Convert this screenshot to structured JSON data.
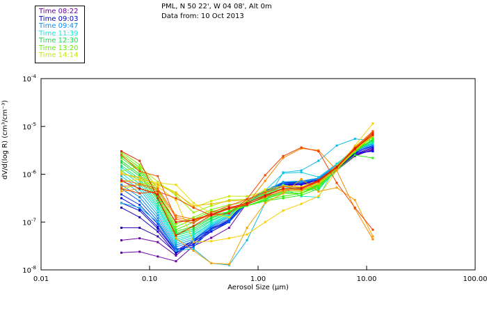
{
  "header": {
    "line1": "PML, N 50 22', W 04 08', Alt 0m",
    "line2": "Data from: 10 Oct 2013"
  },
  "legend": [
    {
      "label": "Time 08:22",
      "color": "#6a00a8"
    },
    {
      "label": "Time 09:03",
      "color": "#0000cc"
    },
    {
      "label": "Time 09:47",
      "color": "#0a8cf0"
    },
    {
      "label": "Time 11:39",
      "color": "#10e8e0"
    },
    {
      "label": "Time 12:30",
      "color": "#10e040"
    },
    {
      "label": "Time 13:20",
      "color": "#60f000"
    },
    {
      "label": "Time 14:14",
      "color": "#c8e800"
    }
  ],
  "chart_data": {
    "type": "line",
    "xlabel": "Aerosol Size (µm)",
    "ylabel": "dV/d(log R) (cm³/cm⁻³)",
    "xscale": "log",
    "yscale": "log",
    "xlim": [
      0.01,
      100
    ],
    "ylim": [
      1e-08,
      0.0001
    ],
    "x_ticks": [
      "0.01",
      "0.10",
      "1.00",
      "10.00",
      "100.00"
    ],
    "y_ticks": [
      {
        "base": "10",
        "exp": "-4"
      },
      {
        "base": "10",
        "exp": "-5"
      },
      {
        "base": "10",
        "exp": "-6"
      },
      {
        "base": "10",
        "exp": "-7"
      },
      {
        "base": "10",
        "exp": "-8"
      }
    ],
    "x": [
      0.055,
      0.081,
      0.119,
      0.175,
      0.254,
      0.37,
      0.54,
      0.79,
      1.16,
      1.7,
      2.5,
      3.6,
      5.3,
      7.8,
      11.4
    ],
    "series_log10": [
      {
        "color": "#6a00a8",
        "values": [
          -7.64,
          -7.62,
          -7.72,
          -7.82,
          -7.5,
          -7.33,
          -7.12,
          -6.6,
          -6.38,
          -6.24,
          -6.22,
          -6.16,
          -5.92,
          -5.62,
          -5.48
        ]
      },
      {
        "color": "#6a00a8",
        "values": [
          -7.38,
          -7.34,
          -7.42,
          -7.7,
          -7.4,
          -7.2,
          -7.0,
          -6.55,
          -6.35,
          -6.2,
          -6.2,
          -6.12,
          -5.9,
          -5.6,
          -5.46
        ]
      },
      {
        "color": "#3000b8",
        "values": [
          -7.12,
          -7.12,
          -7.3,
          -7.64,
          -7.38,
          -7.14,
          -6.96,
          -6.56,
          -6.36,
          -6.22,
          -6.22,
          -6.12,
          -5.88,
          -5.6,
          -5.5
        ]
      },
      {
        "color": "#1000c8",
        "values": [
          -6.7,
          -6.9,
          -7.2,
          -7.66,
          -7.42,
          -7.16,
          -6.98,
          -6.58,
          -6.36,
          -6.2,
          -6.18,
          -6.1,
          -5.86,
          -5.58,
          -5.44
        ]
      },
      {
        "color": "#0000d8",
        "values": [
          -6.6,
          -6.76,
          -7.14,
          -7.62,
          -7.46,
          -7.2,
          -7.0,
          -6.6,
          -6.36,
          -6.22,
          -6.2,
          -6.12,
          -5.88,
          -5.56,
          -5.4
        ]
      },
      {
        "color": "#0000e8",
        "values": [
          -6.5,
          -6.72,
          -7.1,
          -7.6,
          -7.38,
          -7.1,
          -6.94,
          -6.56,
          -6.34,
          -6.18,
          -6.18,
          -6.1,
          -5.86,
          -5.56,
          -5.52
        ]
      },
      {
        "color": "#0030f0",
        "values": [
          -6.42,
          -6.64,
          -7.04,
          -7.58,
          -7.48,
          -7.12,
          -6.98,
          -6.56,
          -6.34,
          -6.18,
          -6.16,
          -6.08,
          -5.84,
          -5.54,
          -5.42
        ]
      },
      {
        "color": "#0060f0",
        "values": [
          -6.3,
          -6.56,
          -6.98,
          -7.56,
          -7.52,
          -7.16,
          -7.0,
          -6.6,
          -6.36,
          -6.2,
          -6.18,
          -6.1,
          -5.84,
          -5.52,
          -5.4
        ]
      },
      {
        "color": "#0a8cf0",
        "values": [
          -6.22,
          -6.48,
          -6.92,
          -7.52,
          -7.4,
          -7.1,
          -6.94,
          -6.62,
          -6.38,
          -6.16,
          -6.16,
          -6.1,
          -5.82,
          -5.5,
          -5.38
        ]
      },
      {
        "color": "#10a0f0",
        "values": [
          -6.1,
          -6.4,
          -6.86,
          -7.48,
          -7.36,
          -7.08,
          -6.9,
          -6.58,
          -6.34,
          -6.16,
          -6.14,
          -6.08,
          -5.8,
          -5.48,
          -5.36
        ]
      },
      {
        "color": "#10b8e8",
        "values": [
          -6.6,
          -6.7,
          -7.0,
          -7.6,
          -7.56,
          -7.86,
          -7.9,
          -7.38,
          -6.6,
          -5.96,
          -5.92,
          -5.72,
          -5.4,
          -5.26,
          -5.3
        ]
      },
      {
        "color": "#10c8e0",
        "values": [
          -6.04,
          -6.32,
          -6.8,
          -7.44,
          -7.32,
          -7.06,
          -6.88,
          -6.58,
          -6.34,
          -5.98,
          -5.96,
          -6.06,
          -5.78,
          -5.48,
          -5.36
        ]
      },
      {
        "color": "#10e0e0",
        "values": [
          -5.98,
          -6.26,
          -6.74,
          -7.4,
          -7.28,
          -7.04,
          -6.86,
          -6.6,
          -6.38,
          -6.3,
          -6.46,
          -6.48,
          -5.8,
          -5.44,
          -5.32
        ]
      },
      {
        "color": "#10e8c0",
        "values": [
          -5.92,
          -6.2,
          -6.7,
          -7.36,
          -7.26,
          -7.02,
          -6.84,
          -6.6,
          -6.4,
          -6.22,
          -6.3,
          -6.34,
          -5.84,
          -5.46,
          -5.34
        ]
      },
      {
        "color": "#10e8a0",
        "values": [
          -5.86,
          -6.14,
          -6.66,
          -7.32,
          -7.22,
          -6.98,
          -6.82,
          -6.58,
          -6.4,
          -6.26,
          -6.32,
          -6.3,
          -5.84,
          -5.48,
          -5.34
        ]
      },
      {
        "color": "#10e870",
        "values": [
          -5.82,
          -6.1,
          -6.6,
          -7.28,
          -7.18,
          -6.96,
          -6.8,
          -6.6,
          -6.42,
          -6.32,
          -6.34,
          -6.26,
          -5.86,
          -5.5,
          -5.3
        ]
      },
      {
        "color": "#10e040",
        "values": [
          -5.76,
          -6.04,
          -6.54,
          -7.26,
          -7.14,
          -6.92,
          -6.78,
          -6.62,
          -6.48,
          -6.38,
          -6.4,
          -6.22,
          -5.88,
          -5.5,
          -5.28
        ]
      },
      {
        "color": "#20e820",
        "values": [
          -5.72,
          -6.0,
          -6.5,
          -7.24,
          -7.1,
          -6.9,
          -6.8,
          -6.66,
          -6.52,
          -6.4,
          -6.4,
          -6.2,
          -5.9,
          -5.52,
          -5.28
        ]
      },
      {
        "color": "#30f010",
        "values": [
          -5.66,
          -5.94,
          -6.46,
          -7.2,
          -7.08,
          -6.86,
          -6.78,
          -6.66,
          -6.56,
          -6.5,
          -6.44,
          -6.3,
          -5.92,
          -5.6,
          -5.66
        ]
      },
      {
        "color": "#40f000",
        "values": [
          -5.62,
          -5.9,
          -6.4,
          -7.16,
          -7.0,
          -6.8,
          -6.74,
          -6.66,
          -6.54,
          -6.46,
          -6.4,
          -6.26,
          -5.88,
          -5.54,
          -5.26
        ]
      },
      {
        "color": "#60f000",
        "values": [
          -5.58,
          -5.86,
          -6.36,
          -7.1,
          -6.94,
          -6.78,
          -6.7,
          -6.62,
          -6.5,
          -6.4,
          -6.4,
          -6.24,
          -5.86,
          -5.52,
          -5.22
        ]
      },
      {
        "color": "#80f000",
        "values": [
          -5.54,
          -5.8,
          -6.3,
          -7.04,
          -6.9,
          -6.74,
          -6.64,
          -6.58,
          -6.46,
          -6.36,
          -6.36,
          -6.2,
          -5.86,
          -5.5,
          -5.2
        ]
      },
      {
        "color": "#a0f000",
        "values": [
          -5.94,
          -5.84,
          -6.16,
          -6.44,
          -6.8,
          -6.66,
          -6.54,
          -6.52,
          -6.4,
          -6.3,
          -6.32,
          -6.18,
          -5.84,
          -5.48,
          -5.18
        ]
      },
      {
        "color": "#c8e800",
        "values": [
          -6.32,
          -6.2,
          -6.2,
          -6.38,
          -6.7,
          -6.56,
          -6.46,
          -6.46,
          -6.36,
          -6.26,
          -6.26,
          -6.14,
          -5.82,
          -5.46,
          -5.16
        ]
      },
      {
        "color": "#e8e000",
        "values": [
          -6.16,
          -6.1,
          -6.18,
          -6.22,
          -6.6,
          -6.82,
          -6.9,
          -6.54,
          -6.32,
          -6.24,
          -6.26,
          -6.16,
          -5.84,
          -5.42,
          -5.12
        ]
      },
      {
        "color": "#f8d000",
        "values": [
          -5.96,
          -6.12,
          -6.26,
          -6.54,
          -7.42,
          -7.4,
          -7.34,
          -7.26,
          -7.0,
          -6.76,
          -6.62,
          -6.46,
          -5.92,
          -5.4,
          -4.94
        ]
      },
      {
        "color": "#f8b800",
        "values": [
          -6.0,
          -6.06,
          -6.22,
          -6.4,
          -6.66,
          -6.62,
          -6.56,
          -6.54,
          -6.44,
          -6.32,
          -6.34,
          -6.2,
          -5.9,
          -5.5,
          -5.2
        ]
      },
      {
        "color": "#f8a000",
        "values": [
          -6.36,
          -6.3,
          -6.4,
          -7.34,
          -7.6,
          -7.86,
          -7.88,
          -7.12,
          -6.6,
          -6.4,
          -6.1,
          -6.36,
          -6.28,
          -6.54,
          -7.3
        ]
      },
      {
        "color": "#f88800",
        "values": [
          -6.26,
          -6.22,
          -6.34,
          -6.9,
          -6.98,
          -6.86,
          -6.72,
          -6.62,
          -6.14,
          -5.66,
          -5.46,
          -5.5,
          -5.92,
          -6.72,
          -7.36
        ]
      },
      {
        "color": "#f87000",
        "values": [
          -6.12,
          -6.2,
          -6.3,
          -6.86,
          -6.94,
          -6.84,
          -6.7,
          -6.62,
          -6.48,
          -6.34,
          -6.32,
          -6.16,
          -5.86,
          -5.46,
          -5.12
        ]
      },
      {
        "color": "#f85800",
        "values": [
          -5.6,
          -5.94,
          -6.04,
          -6.94,
          -7.02,
          -6.8,
          -6.66,
          -6.52,
          -6.38,
          -6.26,
          -6.28,
          -6.16,
          -5.84,
          -5.44,
          -5.1
        ]
      },
      {
        "color": "#f04000",
        "values": [
          -6.3,
          -6.4,
          -6.36,
          -6.5,
          -6.7,
          -6.86,
          -6.82,
          -6.52,
          -6.02,
          -5.62,
          -5.44,
          -5.52,
          -6.18,
          -6.7,
          -7.16
        ]
      },
      {
        "color": "#e82800",
        "values": [
          -5.52,
          -5.72,
          -6.5,
          -7.28,
          -7.08,
          -6.86,
          -6.72,
          -6.64,
          -6.46,
          -6.3,
          -6.3,
          -6.12,
          -5.84,
          -5.48,
          -5.14
        ]
      },
      {
        "color": "#e01000",
        "values": [
          -6.14,
          -6.3,
          -6.42,
          -7.0,
          -6.96,
          -6.84,
          -6.7,
          -6.6,
          -6.44,
          -6.3,
          -6.3,
          -6.14,
          -5.86,
          -5.46,
          -5.18
        ]
      }
    ]
  }
}
